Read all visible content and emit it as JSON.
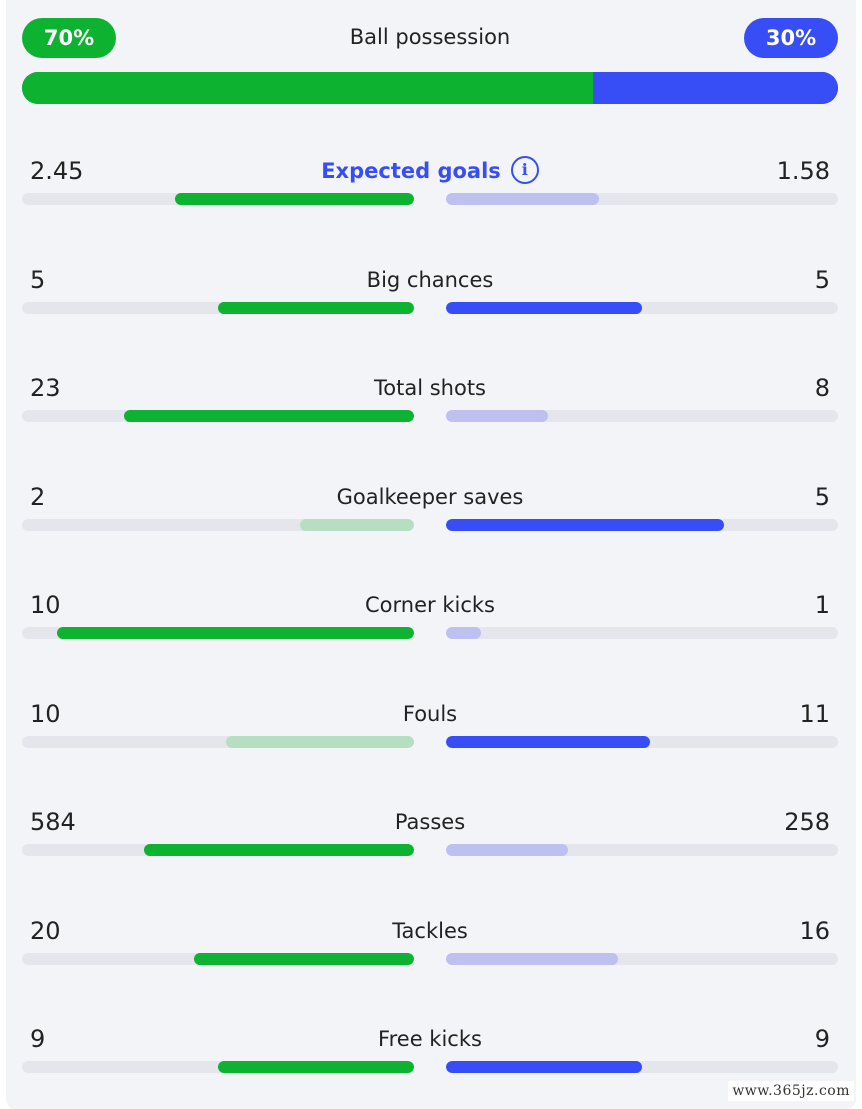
{
  "possession": {
    "title": "Ball possession",
    "home_label": "70%",
    "away_label": "30%",
    "home_fraction": 0.7
  },
  "colors": {
    "home_strong": "#0db230",
    "home_weak": "#b5dfc0",
    "away_strong": "#374df5",
    "away_weak": "#bcc1ef",
    "track": "#e4e6eb"
  },
  "stats": [
    {
      "name": "Expected goals",
      "home": "2.45",
      "away": "1.58",
      "home_fraction": 0.61,
      "away_fraction": 0.39,
      "has_info": true
    },
    {
      "name": "Big chances",
      "home": "5",
      "away": "5",
      "home_fraction": 0.5,
      "away_fraction": 0.5
    },
    {
      "name": "Total shots",
      "home": "23",
      "away": "8",
      "home_fraction": 0.74,
      "away_fraction": 0.26
    },
    {
      "name": "Goalkeeper saves",
      "home": "2",
      "away": "5",
      "home_fraction": 0.29,
      "away_fraction": 0.71
    },
    {
      "name": "Corner kicks",
      "home": "10",
      "away": "1",
      "home_fraction": 0.91,
      "away_fraction": 0.09
    },
    {
      "name": "Fouls",
      "home": "10",
      "away": "11",
      "home_fraction": 0.48,
      "away_fraction": 0.52
    },
    {
      "name": "Passes",
      "home": "584",
      "away": "258",
      "home_fraction": 0.69,
      "away_fraction": 0.31
    },
    {
      "name": "Tackles",
      "home": "20",
      "away": "16",
      "home_fraction": 0.56,
      "away_fraction": 0.44
    },
    {
      "name": "Free kicks",
      "home": "9",
      "away": "9",
      "home_fraction": 0.5,
      "away_fraction": 0.5
    }
  ],
  "watermark": "www.365jz.com"
}
